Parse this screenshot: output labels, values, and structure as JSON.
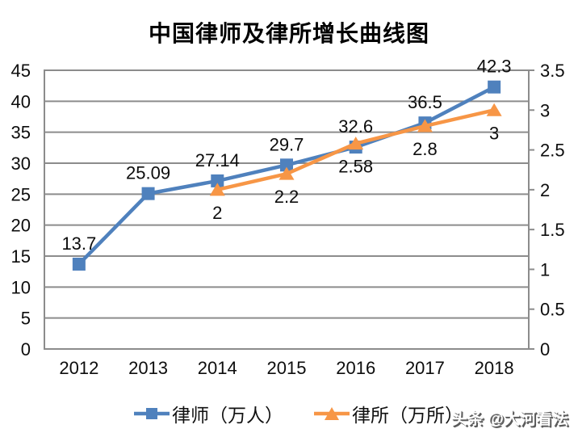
{
  "title": "中国律师及律所增长曲线图",
  "watermark": "头条 @大河看法",
  "chart_data": {
    "type": "line",
    "title": "中国律师及律所增长曲线图",
    "categories": [
      "2012",
      "2013",
      "2014",
      "2015",
      "2016",
      "2017",
      "2018"
    ],
    "series": [
      {
        "key": "lawyers",
        "name": "律师（万人）",
        "axis": "left",
        "color": "#4F81BD",
        "marker": "square",
        "label_position": "above",
        "values": [
          13.7,
          25.09,
          27.14,
          29.7,
          32.6,
          36.5,
          42.3
        ]
      },
      {
        "key": "law-firms",
        "name": "律所（万所）",
        "axis": "right",
        "color": "#F79646",
        "marker": "triangle",
        "label_position": "below",
        "values": [
          null,
          null,
          2,
          2.2,
          2.58,
          2.8,
          3
        ]
      }
    ],
    "axes": {
      "left": {
        "min": 0,
        "max": 45,
        "ticks": [
          0,
          5,
          10,
          15,
          20,
          25,
          30,
          35,
          40,
          45
        ]
      },
      "right": {
        "min": 0,
        "max": 3.5,
        "ticks": [
          0,
          0.5,
          1,
          1.5,
          2,
          2.5,
          3,
          3.5
        ]
      }
    },
    "grid": true,
    "data_labels": true,
    "legend_position": "bottom"
  },
  "colors": {
    "grid": "#8C8C8C",
    "axis_text": "#0d0d0d",
    "background": "#FFFFFF"
  }
}
